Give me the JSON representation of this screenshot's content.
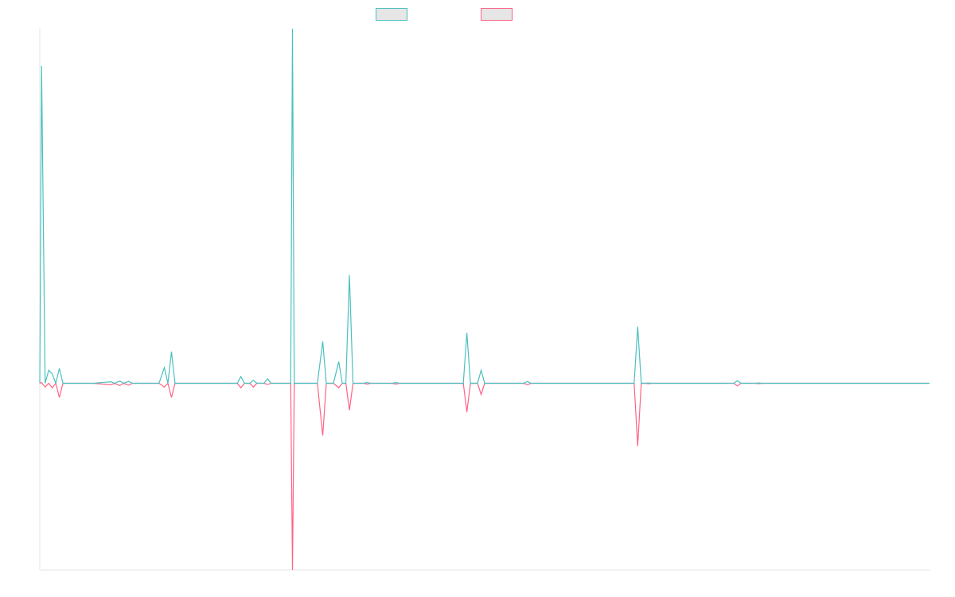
{
  "chart_data": {
    "type": "line",
    "title": "",
    "xlabel": "",
    "ylabel": "",
    "grid": false,
    "legend_position": "top-center",
    "ylim": [
      -0.5,
      0.95
    ],
    "series": [
      {
        "color": "#4bc0c0",
        "fill": "#e6e6e6",
        "points": [
          [
            0,
            0
          ],
          [
            1,
            0.85
          ],
          [
            3,
            0
          ],
          [
            5,
            0.035
          ],
          [
            7,
            0.025
          ],
          [
            9,
            0
          ],
          [
            11,
            0.04
          ],
          [
            13,
            0
          ],
          [
            30,
            0
          ],
          [
            40,
            0.004
          ],
          [
            42,
            0
          ],
          [
            45,
            0.006
          ],
          [
            47,
            0
          ],
          [
            50,
            0.005
          ],
          [
            52,
            0
          ],
          [
            67,
            0
          ],
          [
            70,
            0.042
          ],
          [
            72,
            0
          ],
          [
            74,
            0.085
          ],
          [
            76,
            0
          ],
          [
            80,
            0
          ],
          [
            111,
            0
          ],
          [
            113,
            0.018
          ],
          [
            115,
            0
          ],
          [
            118,
            0
          ],
          [
            120,
            0.008
          ],
          [
            122,
            0
          ],
          [
            126,
            0
          ],
          [
            128,
            0.012
          ],
          [
            130,
            0
          ],
          [
            141,
            0
          ],
          [
            142,
            0.95
          ],
          [
            143,
            0
          ],
          [
            156,
            0
          ],
          [
            159,
            0.112
          ],
          [
            161,
            0
          ],
          [
            165,
            0
          ],
          [
            168,
            0.058
          ],
          [
            170,
            0
          ],
          [
            172,
            0
          ],
          [
            174,
            0.29
          ],
          [
            176,
            0
          ],
          [
            182,
            0
          ],
          [
            184,
            0.002
          ],
          [
            186,
            0
          ],
          [
            198,
            0
          ],
          [
            200,
            0.002
          ],
          [
            202,
            0
          ],
          [
            238,
            0
          ],
          [
            240,
            0.135
          ],
          [
            242,
            0
          ],
          [
            246,
            0
          ],
          [
            248,
            0.035
          ],
          [
            250,
            0
          ],
          [
            272,
            0
          ],
          [
            274,
            0.005
          ],
          [
            276,
            0
          ],
          [
            334,
            0
          ],
          [
            336,
            0.152
          ],
          [
            338,
            0
          ],
          [
            340,
            0
          ],
          [
            342,
            0.001
          ],
          [
            344,
            0
          ],
          [
            390,
            0
          ],
          [
            392,
            0.007
          ],
          [
            394,
            0
          ],
          [
            402,
            0
          ],
          [
            404,
            0.001
          ],
          [
            406,
            0
          ],
          [
            500,
            0
          ]
        ]
      },
      {
        "color": "#ff6384",
        "fill": "#e6e6e6",
        "points": [
          [
            0,
            0
          ],
          [
            1,
            0.002
          ],
          [
            3,
            -0.01
          ],
          [
            5,
            0
          ],
          [
            7,
            -0.012
          ],
          [
            9,
            0
          ],
          [
            11,
            -0.038
          ],
          [
            13,
            0
          ],
          [
            30,
            0
          ],
          [
            40,
            -0.004
          ],
          [
            42,
            0
          ],
          [
            45,
            -0.006
          ],
          [
            47,
            0
          ],
          [
            50,
            -0.005
          ],
          [
            52,
            0
          ],
          [
            67,
            0
          ],
          [
            70,
            -0.01
          ],
          [
            72,
            0
          ],
          [
            74,
            -0.038
          ],
          [
            76,
            0
          ],
          [
            80,
            0
          ],
          [
            111,
            0
          ],
          [
            113,
            -0.012
          ],
          [
            115,
            0
          ],
          [
            118,
            0
          ],
          [
            120,
            -0.01
          ],
          [
            122,
            0
          ],
          [
            126,
            0
          ],
          [
            128,
            -0.003
          ],
          [
            130,
            0
          ],
          [
            141,
            0
          ],
          [
            142,
            -0.5
          ],
          [
            143,
            0
          ],
          [
            156,
            0
          ],
          [
            159,
            -0.14
          ],
          [
            161,
            0
          ],
          [
            165,
            0
          ],
          [
            168,
            -0.012
          ],
          [
            170,
            0
          ],
          [
            172,
            0
          ],
          [
            174,
            -0.072
          ],
          [
            176,
            0
          ],
          [
            182,
            0
          ],
          [
            184,
            -0.002
          ],
          [
            186,
            0
          ],
          [
            198,
            0
          ],
          [
            200,
            -0.002
          ],
          [
            202,
            0
          ],
          [
            238,
            0
          ],
          [
            240,
            -0.077
          ],
          [
            242,
            0
          ],
          [
            246,
            0
          ],
          [
            248,
            -0.03
          ],
          [
            250,
            0
          ],
          [
            272,
            0
          ],
          [
            274,
            -0.004
          ],
          [
            276,
            0
          ],
          [
            334,
            0
          ],
          [
            336,
            -0.168
          ],
          [
            338,
            0
          ],
          [
            340,
            0
          ],
          [
            342,
            -0.001
          ],
          [
            344,
            0
          ],
          [
            390,
            0
          ],
          [
            392,
            -0.007
          ],
          [
            394,
            0
          ],
          [
            402,
            0
          ],
          [
            404,
            -0.001
          ],
          [
            406,
            0
          ],
          [
            500,
            0
          ]
        ]
      }
    ]
  }
}
